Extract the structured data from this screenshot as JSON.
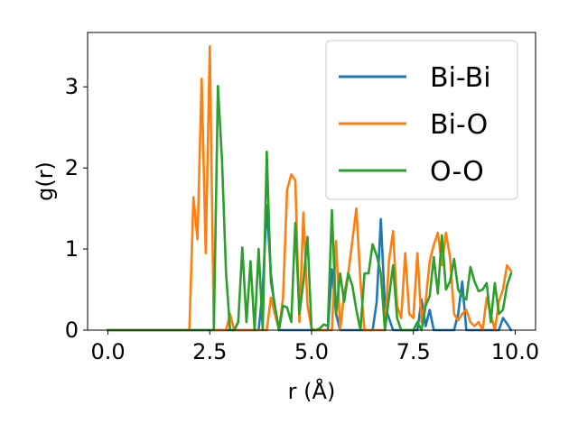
{
  "chart_data": {
    "type": "line",
    "xlabel": "r (Å)",
    "ylabel": "g(r)",
    "xlim": [
      -0.5,
      10.5
    ],
    "ylim": [
      0,
      3.67
    ],
    "xticks": [
      0.0,
      2.5,
      5.0,
      7.5,
      10.0
    ],
    "xtick_labels": [
      "0.0",
      "2.5",
      "5.0",
      "7.5",
      "10.0"
    ],
    "yticks": [
      0,
      1,
      2,
      3
    ],
    "ytick_labels": [
      "0",
      "1",
      "2",
      "3"
    ],
    "grid": false,
    "legend_position": "upper right",
    "series": [
      {
        "name": "Bi-Bi",
        "color": "#1f77b4",
        "x": [
          0,
          3.7,
          3.8,
          3.9,
          4.0,
          4.1,
          4.2,
          5.4,
          5.5,
          5.6,
          5.7,
          6.5,
          6.6,
          6.7,
          6.8,
          6.9,
          7.0,
          7.6,
          7.7,
          7.8,
          7.9,
          8.0,
          8.1,
          8.5,
          8.6,
          8.7,
          8.8,
          9.6,
          9.7,
          9.8,
          9.9
        ],
        "y": [
          0,
          0,
          0.5,
          1.54,
          0.7,
          0.25,
          0,
          0,
          0.75,
          0.2,
          0,
          0,
          0.35,
          1.37,
          0.3,
          0.15,
          0,
          0,
          0.38,
          0.05,
          0.25,
          0,
          0,
          0,
          0.2,
          0.6,
          0,
          0,
          0.15,
          0.08,
          0
        ]
      },
      {
        "name": "Bi-O",
        "color": "#ff7f0e",
        "x": [
          0,
          2.0,
          2.1,
          2.2,
          2.3,
          2.4,
          2.5,
          2.6,
          2.9,
          3.0,
          3.1,
          3.9,
          4.0,
          4.2,
          4.3,
          4.4,
          4.5,
          4.6,
          4.7,
          4.8,
          4.9,
          5.0,
          5.1,
          5.5,
          5.6,
          5.7,
          5.8,
          5.9,
          6.0,
          6.1,
          6.2,
          6.3,
          6.8,
          6.9,
          7.0,
          7.1,
          7.2,
          7.3,
          7.4,
          7.5,
          7.6,
          7.7,
          7.8,
          7.9,
          8.0,
          8.1,
          8.2,
          8.3,
          8.4,
          8.5,
          8.6,
          8.7,
          8.8,
          8.9,
          9.0,
          9.1,
          9.2,
          9.3,
          9.4,
          9.5,
          9.6,
          9.7,
          9.8,
          9.9
        ],
        "y": [
          0,
          0,
          1.64,
          1.12,
          3.1,
          0.95,
          3.5,
          0,
          0,
          0.2,
          0,
          0,
          0.4,
          0,
          0.4,
          1.73,
          1.92,
          1.85,
          0.1,
          1.45,
          0.3,
          0.02,
          0,
          0,
          1.1,
          0,
          0.45,
          0.7,
          1.1,
          1.5,
          0.6,
          0,
          0,
          0.85,
          1.22,
          0.3,
          0.15,
          0.95,
          0.2,
          0.15,
          0.95,
          0.1,
          0.35,
          0.85,
          1.05,
          1.2,
          0.8,
          1.2,
          0.9,
          0.2,
          0.12,
          0.2,
          0.25,
          0.1,
          0.05,
          0.1,
          0,
          0.4,
          0.2,
          0,
          0.35,
          0.5,
          0.8,
          0.73
        ]
      },
      {
        "name": "O-O",
        "color": "#2ca02c",
        "x": [
          0,
          2.5,
          2.6,
          2.7,
          2.8,
          2.9,
          3.0,
          3.1,
          3.2,
          3.3,
          3.4,
          3.5,
          3.6,
          3.7,
          3.8,
          3.9,
          4.0,
          4.1,
          4.2,
          4.3,
          4.4,
          4.5,
          4.6,
          4.7,
          4.8,
          4.9,
          5.0,
          5.1,
          5.2,
          5.3,
          5.4,
          5.5,
          5.6,
          5.7,
          5.8,
          5.9,
          6.0,
          6.1,
          6.2,
          6.3,
          6.4,
          6.5,
          6.6,
          6.7,
          6.8,
          6.9,
          7.0,
          7.1,
          7.2,
          7.3,
          7.4,
          7.5,
          7.6,
          7.7,
          7.8,
          7.9,
          8.0,
          8.1,
          8.2,
          8.3,
          8.4,
          8.5,
          8.6,
          8.7,
          8.8,
          8.9,
          9.0,
          9.1,
          9.2,
          9.3,
          9.4,
          9.5,
          9.6,
          9.7,
          9.8,
          9.9
        ],
        "y": [
          0,
          0,
          0,
          3.01,
          2.1,
          0.7,
          0,
          0,
          0.1,
          1.02,
          0.1,
          0.85,
          0,
          1.0,
          0,
          2.2,
          0.6,
          0.3,
          0,
          0.3,
          0.28,
          0.1,
          1.32,
          0.2,
          0.6,
          1.15,
          0,
          0,
          0.02,
          0.07,
          0.05,
          1.48,
          0.2,
          0.7,
          0.35,
          0.7,
          0.55,
          0.25,
          0,
          0.7,
          0.7,
          1.06,
          0.92,
          0.7,
          0,
          0.4,
          0.8,
          0.15,
          0,
          0,
          0,
          0,
          0.1,
          0,
          0.3,
          0.42,
          0.9,
          0.45,
          1.17,
          0.5,
          0.6,
          0.88,
          0.5,
          0.42,
          0.38,
          0.78,
          0.6,
          0.48,
          0.5,
          0.58,
          0.1,
          0.58,
          0.2,
          0.25,
          0.55,
          0.7
        ]
      }
    ]
  }
}
